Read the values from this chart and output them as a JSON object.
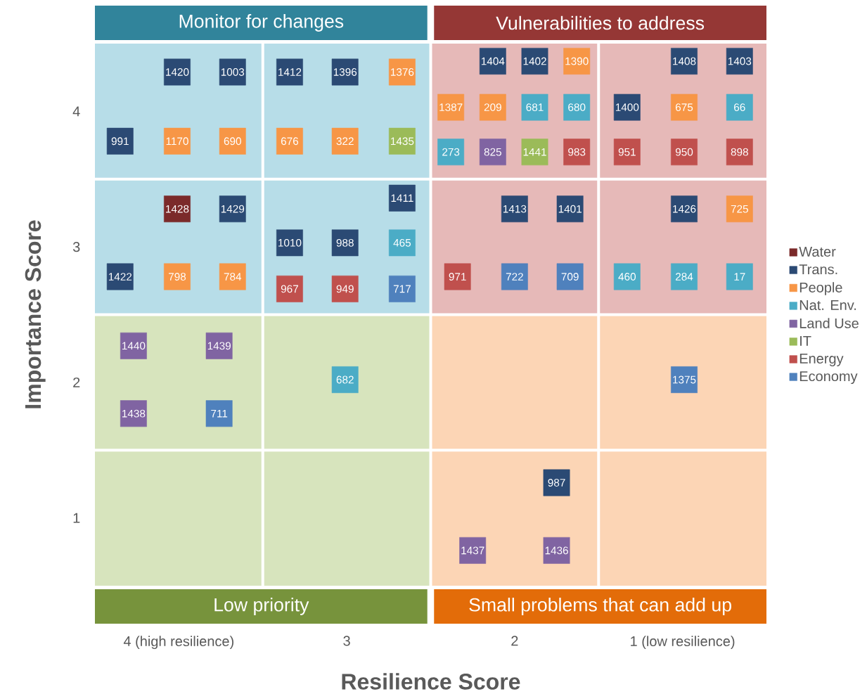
{
  "chart_data": {
    "type": "scatter",
    "xlabel": "Resilience Score",
    "ylabel": "Importance Score",
    "xlim": [
      4.5,
      0.5
    ],
    "ylim": [
      0.5,
      4.5
    ],
    "xticks": [
      {
        "value": 4,
        "label": "4 (high resilience)"
      },
      3,
      2,
      {
        "value": 1,
        "label": "1 (low resilience)"
      }
    ],
    "yticks": [
      1,
      2,
      3,
      4
    ],
    "legend": "right",
    "marker": "square",
    "annotations": [
      "Monitor for changes",
      "Vulnerabilities to address",
      "Low priority",
      "Small problems that can add up",
      {
        "text": "1428",
        "x": 4.01,
        "y": 3.28
      },
      {
        "text": "1420",
        "x": 4.01,
        "y": 4.29
      },
      {
        "text": "1003",
        "x": 3.68,
        "y": 4.29
      },
      {
        "text": "991",
        "x": 4.35,
        "y": 3.78
      },
      {
        "text": "1412",
        "x": 3.34,
        "y": 4.29
      },
      {
        "text": "1396",
        "x": 3.01,
        "y": 4.29
      },
      {
        "text": "1429",
        "x": 3.68,
        "y": 3.28
      },
      {
        "text": "1422",
        "x": 4.35,
        "y": 2.78
      },
      {
        "text": "1411",
        "x": 2.67,
        "y": 3.36
      },
      {
        "text": "1010",
        "x": 3.34,
        "y": 3.03
      },
      {
        "text": "988",
        "x": 3.01,
        "y": 3.03
      },
      {
        "text": "1404",
        "x": 2.13,
        "y": 4.37
      },
      {
        "text": "1402",
        "x": 1.88,
        "y": 4.37
      },
      {
        "text": "1408",
        "x": 0.99,
        "y": 4.37
      },
      {
        "text": "1403",
        "x": 0.66,
        "y": 4.37
      },
      {
        "text": "1400",
        "x": 1.33,
        "y": 4.03
      },
      {
        "text": "1413",
        "x": 2.0,
        "y": 3.28
      },
      {
        "text": "1401",
        "x": 1.67,
        "y": 3.28
      },
      {
        "text": "1426",
        "x": 0.99,
        "y": 3.28
      },
      {
        "text": "987",
        "x": 1.75,
        "y": 1.26
      },
      {
        "text": "1170",
        "x": 4.01,
        "y": 3.78
      },
      {
        "text": "690",
        "x": 3.68,
        "y": 3.78
      },
      {
        "text": "1376",
        "x": 2.67,
        "y": 4.29
      },
      {
        "text": "676",
        "x": 3.34,
        "y": 3.78
      },
      {
        "text": "322",
        "x": 3.01,
        "y": 3.78
      },
      {
        "text": "798",
        "x": 4.01,
        "y": 2.78
      },
      {
        "text": "784",
        "x": 3.68,
        "y": 2.78
      },
      {
        "text": "1390",
        "x": 1.63,
        "y": 4.37
      },
      {
        "text": "1387",
        "x": 2.38,
        "y": 4.03
      },
      {
        "text": "209",
        "x": 2.13,
        "y": 4.03
      },
      {
        "text": "675",
        "x": 0.99,
        "y": 4.03
      },
      {
        "text": "725",
        "x": 0.66,
        "y": 3.28
      },
      {
        "text": "465",
        "x": 2.67,
        "y": 3.03
      },
      {
        "text": "681",
        "x": 1.88,
        "y": 4.03
      },
      {
        "text": "680",
        "x": 1.63,
        "y": 4.03
      },
      {
        "text": "66",
        "x": 0.66,
        "y": 4.03
      },
      {
        "text": "273",
        "x": 2.38,
        "y": 3.7
      },
      {
        "text": "460",
        "x": 1.33,
        "y": 2.78
      },
      {
        "text": "284",
        "x": 0.99,
        "y": 2.78
      },
      {
        "text": "17",
        "x": 0.66,
        "y": 2.78
      },
      {
        "text": "682",
        "x": 3.01,
        "y": 2.02
      },
      {
        "text": "825",
        "x": 2.13,
        "y": 3.7
      },
      {
        "text": "1440",
        "x": 4.27,
        "y": 2.27
      },
      {
        "text": "1439",
        "x": 3.76,
        "y": 2.27
      },
      {
        "text": "1438",
        "x": 4.27,
        "y": 1.77
      },
      {
        "text": "1437",
        "x": 2.25,
        "y": 0.76
      },
      {
        "text": "1436",
        "x": 1.75,
        "y": 0.76
      },
      {
        "text": "1435",
        "x": 2.67,
        "y": 3.78
      },
      {
        "text": "1441",
        "x": 1.88,
        "y": 3.7
      },
      {
        "text": "967",
        "x": 3.34,
        "y": 2.69
      },
      {
        "text": "949",
        "x": 3.01,
        "y": 2.69
      },
      {
        "text": "983",
        "x": 1.63,
        "y": 3.7
      },
      {
        "text": "951",
        "x": 1.33,
        "y": 3.7
      },
      {
        "text": "950",
        "x": 0.99,
        "y": 3.7
      },
      {
        "text": "898",
        "x": 0.66,
        "y": 3.7
      },
      {
        "text": "971",
        "x": 2.34,
        "y": 2.78
      },
      {
        "text": "717",
        "x": 2.67,
        "y": 2.69
      },
      {
        "text": "722",
        "x": 2.0,
        "y": 2.78
      },
      {
        "text": "709",
        "x": 1.67,
        "y": 2.78
      },
      {
        "text": "711",
        "x": 3.76,
        "y": 1.77
      },
      {
        "text": "1375",
        "x": 0.99,
        "y": 2.02
      }
    ],
    "series": [
      {
        "name": "Water",
        "color": "#7b2a2a",
        "x": [
          4.01
        ],
        "values": [
          3.28
        ]
      },
      {
        "name": "Trans.",
        "color": "#2b4a74",
        "x": [
          4.01,
          3.68,
          4.35,
          3.34,
          3.01,
          3.68,
          4.35,
          2.67,
          3.34,
          3.01,
          2.13,
          1.88,
          0.99,
          0.66,
          1.33,
          2.0,
          1.67,
          0.99,
          1.75
        ],
        "values": [
          4.29,
          4.29,
          3.78,
          4.29,
          4.29,
          3.28,
          2.78,
          3.36,
          3.03,
          3.03,
          4.37,
          4.37,
          4.37,
          4.37,
          4.03,
          3.28,
          3.28,
          3.28,
          1.26
        ]
      },
      {
        "name": "People",
        "color": "#f79646",
        "x": [
          4.01,
          3.68,
          2.67,
          3.34,
          3.01,
          4.01,
          3.68,
          1.63,
          2.38,
          2.13,
          0.99,
          0.66
        ],
        "values": [
          3.78,
          3.78,
          4.29,
          3.78,
          3.78,
          2.78,
          2.78,
          4.37,
          4.03,
          4.03,
          4.03,
          3.28
        ]
      },
      {
        "name": "Nat. Env.",
        "color": "#4bacc6",
        "x": [
          2.67,
          1.88,
          1.63,
          0.66,
          2.38,
          1.33,
          0.99,
          0.66,
          3.01
        ],
        "values": [
          3.03,
          4.03,
          4.03,
          4.03,
          3.7,
          2.78,
          2.78,
          2.78,
          2.02
        ]
      },
      {
        "name": "Land Use",
        "color": "#8064a2",
        "x": [
          2.13,
          4.27,
          3.76,
          4.27,
          2.25,
          1.75
        ],
        "values": [
          3.7,
          2.27,
          2.27,
          1.77,
          0.76,
          0.76
        ]
      },
      {
        "name": "IT",
        "color": "#9bbb59",
        "x": [
          2.67,
          1.88
        ],
        "values": [
          3.78,
          3.7
        ]
      },
      {
        "name": "Energy",
        "color": "#c0504d",
        "x": [
          3.34,
          3.01,
          1.63,
          1.33,
          0.99,
          0.66,
          2.34
        ],
        "values": [
          2.69,
          2.69,
          3.7,
          3.7,
          3.7,
          3.7,
          2.78
        ]
      },
      {
        "name": "Economy",
        "color": "#4f81bd",
        "x": [
          2.67,
          2.0,
          1.67,
          3.76,
          0.99
        ],
        "values": [
          2.69,
          2.78,
          2.78,
          1.77,
          2.02
        ]
      }
    ]
  }
}
